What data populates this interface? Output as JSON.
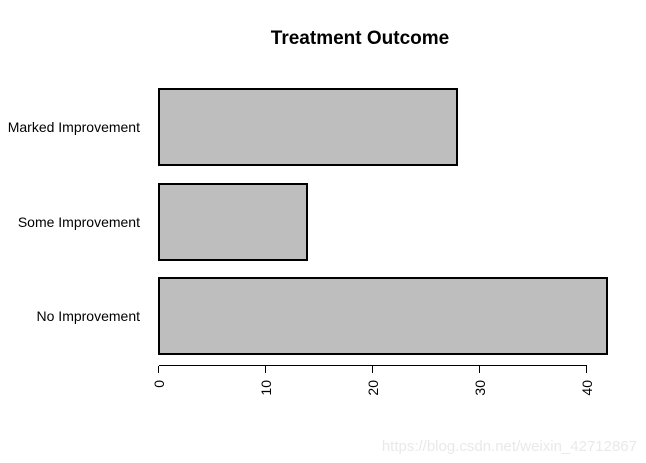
{
  "figure": {
    "watermark": "https://blog.csdn.net/weixin_42712867"
  },
  "colors": {
    "background": "#ffffff",
    "bar_fill": "#bebebe",
    "bar_border": "#000000",
    "axis": "#000000",
    "text": "#000000",
    "watermark": "#e9e9e9"
  },
  "chart_data": {
    "type": "bar",
    "orientation": "horizontal",
    "title": "Treatment Outcome",
    "categories": [
      "Marked Improvement",
      "Some Improvement",
      "No Improvement"
    ],
    "values": [
      28,
      14,
      42
    ],
    "xlabel": "",
    "ylabel": "",
    "x_ticks": [
      0,
      10,
      20,
      30,
      40
    ],
    "xlim": [
      0,
      42
    ],
    "grid": false,
    "legend": null,
    "tick_label_rotation_deg": 90,
    "bar_fill": "#bebebe",
    "bar_border": "#000000"
  }
}
